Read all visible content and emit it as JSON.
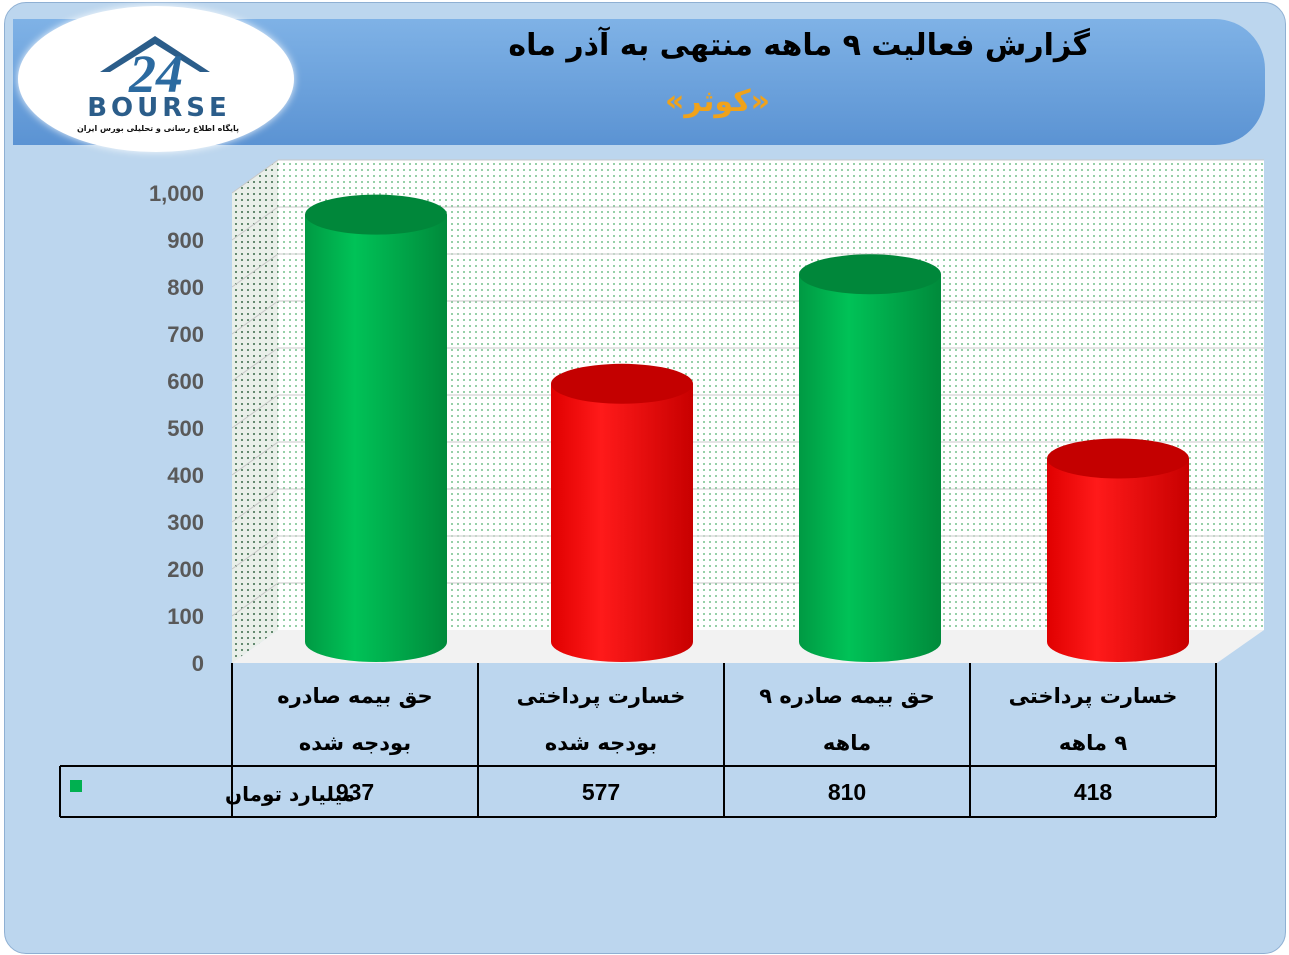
{
  "header": {
    "title": "گزارش فعالیت ۹ ماهه منتهی به آذر ماه",
    "subtitle": "«کوثر»"
  },
  "logo": {
    "wordmark": "BOURSE",
    "number": "24",
    "tagline": "پایگاه اطلاع رسانی و تحلیلی بورس ایران"
  },
  "colors": {
    "green": "#00b050",
    "red": "#ff0000",
    "title_accent": "#f0a21a"
  },
  "chart_data": {
    "type": "bar",
    "categories": [
      [
        "حق بیمه صادره",
        "بودجه شده"
      ],
      [
        "خسارت پرداختی",
        "بودجه شده"
      ],
      [
        "حق بیمه صادره ۹",
        "ماهه"
      ],
      [
        "خسارت پرداختی",
        "۹ ماهه"
      ]
    ],
    "series": [
      {
        "name": "میلیارد تومان",
        "values": [
          937,
          577,
          810,
          418
        ]
      }
    ],
    "value_labels": [
      "937",
      "577",
      "810",
      "418"
    ],
    "bar_colors": [
      "#00b050",
      "#ff0000",
      "#00b050",
      "#ff0000"
    ],
    "bar_style": "cylinder",
    "yticks": [
      "0",
      "100",
      "200",
      "300",
      "400",
      "500",
      "600",
      "700",
      "800",
      "900",
      "1,000"
    ],
    "ylim": [
      0,
      1000
    ],
    "grid": true,
    "legend": "data-table"
  }
}
